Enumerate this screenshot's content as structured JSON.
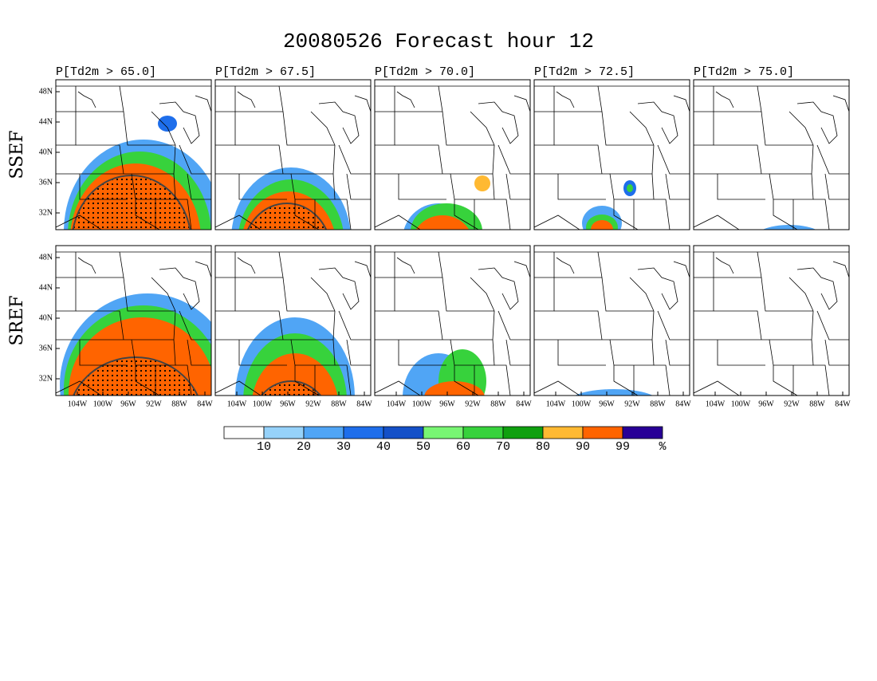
{
  "title": "20080526 Forecast hour 12",
  "columns": [
    "P[Td2m > 65.0]",
    "P[Td2m > 67.5]",
    "P[Td2m > 70.0]",
    "P[Td2m > 72.5]",
    "P[Td2m > 75.0]"
  ],
  "rows": [
    "SSEF",
    "SREF"
  ],
  "lat_labels": [
    "48N",
    "44N",
    "40N",
    "36N",
    "32N"
  ],
  "lon_labels": [
    "104W",
    "100W",
    "96W",
    "92W",
    "88W",
    "84W"
  ],
  "colorbar": {
    "colors": [
      "#ffffff",
      "#96d2fa",
      "#50a5f5",
      "#1e6eeb",
      "#1450c8",
      "#78f573",
      "#37d23c",
      "#0fa00f",
      "#ffb932",
      "#ff6400",
      "#280096"
    ],
    "labels": [
      "10",
      "20",
      "30",
      "40",
      "50",
      "60",
      "70",
      "80",
      "90",
      "99"
    ],
    "unit": "%"
  }
}
